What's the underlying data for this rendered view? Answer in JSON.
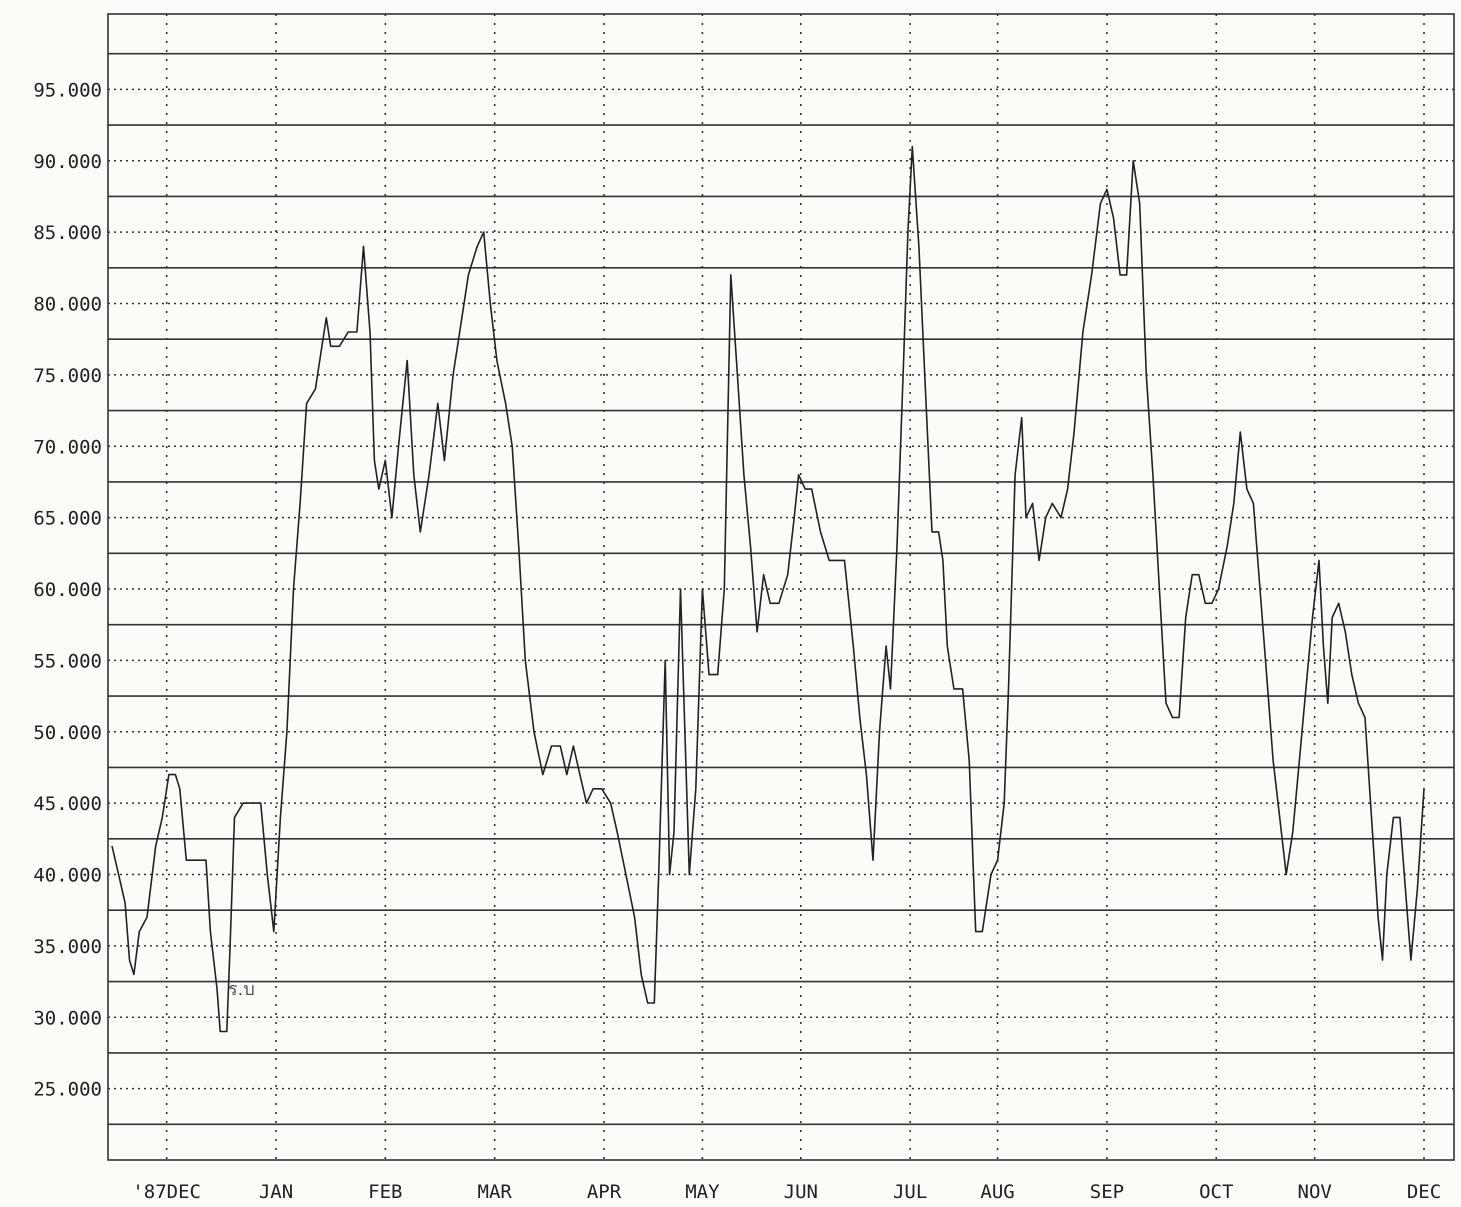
{
  "chart_data": {
    "type": "line",
    "title": "",
    "xlabel": "",
    "ylabel": "",
    "ylim": [
      20,
      100
    ],
    "yticks": [
      25,
      30,
      35,
      40,
      45,
      50,
      55,
      60,
      65,
      70,
      75,
      80,
      85,
      90,
      95
    ],
    "ytick_labels": [
      "25.000",
      "30.000",
      "35.000",
      "40.000",
      "45.000",
      "50.000",
      "55.000",
      "60.000",
      "65.000",
      "70.000",
      "75.000",
      "80.000",
      "85.000",
      "90.000",
      "95.000"
    ],
    "xlim": [
      0,
      12.6
    ],
    "xticks": [
      0.5,
      1.5,
      2.5,
      3.5,
      4.5,
      5.4,
      6.3,
      7.3,
      8.1,
      9.1,
      10.1,
      11.0,
      12.0
    ],
    "xtick_labels": [
      "'87DEC",
      "JAN",
      "FEB",
      "MAR",
      "APR",
      "MAY",
      "JUN",
      "JUL",
      "AUG",
      "SEP",
      "OCT",
      "NOV",
      "DEC"
    ],
    "grid": true,
    "annotations": [
      "ร.บ"
    ],
    "series": [
      {
        "values": [
          [
            0.0,
            42
          ],
          [
            0.06,
            40
          ],
          [
            0.12,
            38
          ],
          [
            0.16,
            34
          ],
          [
            0.2,
            33
          ],
          [
            0.25,
            36
          ],
          [
            0.32,
            37
          ],
          [
            0.4,
            42
          ],
          [
            0.46,
            44
          ],
          [
            0.52,
            47
          ],
          [
            0.58,
            47
          ],
          [
            0.62,
            46
          ],
          [
            0.68,
            41
          ],
          [
            0.8,
            41
          ],
          [
            0.86,
            41
          ],
          [
            0.9,
            36
          ],
          [
            0.96,
            32
          ],
          [
            0.99,
            29
          ],
          [
            1.05,
            29
          ],
          [
            1.08,
            35
          ],
          [
            1.12,
            44
          ],
          [
            1.2,
            45
          ],
          [
            1.28,
            45
          ],
          [
            1.36,
            45
          ],
          [
            1.42,
            40
          ],
          [
            1.48,
            36
          ],
          [
            1.54,
            44
          ],
          [
            1.6,
            50
          ],
          [
            1.66,
            60
          ],
          [
            1.72,
            66
          ],
          [
            1.78,
            73
          ],
          [
            1.86,
            74
          ],
          [
            1.92,
            77
          ],
          [
            1.96,
            79
          ],
          [
            2.0,
            77
          ],
          [
            2.08,
            77
          ],
          [
            2.16,
            78
          ],
          [
            2.24,
            78
          ],
          [
            2.3,
            84
          ],
          [
            2.36,
            78
          ],
          [
            2.4,
            69
          ],
          [
            2.44,
            67
          ],
          [
            2.5,
            69
          ],
          [
            2.56,
            65
          ],
          [
            2.62,
            70
          ],
          [
            2.7,
            76
          ],
          [
            2.76,
            68
          ],
          [
            2.82,
            64
          ],
          [
            2.9,
            68
          ],
          [
            2.98,
            73
          ],
          [
            3.04,
            69
          ],
          [
            3.12,
            75
          ],
          [
            3.18,
            78
          ],
          [
            3.26,
            82
          ],
          [
            3.34,
            84
          ],
          [
            3.4,
            85
          ],
          [
            3.46,
            80
          ],
          [
            3.52,
            76
          ],
          [
            3.6,
            73
          ],
          [
            3.66,
            70
          ],
          [
            3.72,
            63
          ],
          [
            3.78,
            55
          ],
          [
            3.86,
            50
          ],
          [
            3.94,
            47
          ],
          [
            4.02,
            49
          ],
          [
            4.1,
            49
          ],
          [
            4.16,
            47
          ],
          [
            4.22,
            49
          ],
          [
            4.28,
            47
          ],
          [
            4.34,
            45
          ],
          [
            4.4,
            46
          ],
          [
            4.48,
            46
          ],
          [
            4.56,
            45
          ],
          [
            4.62,
            43
          ],
          [
            4.7,
            40
          ],
          [
            4.78,
            37
          ],
          [
            4.84,
            33
          ],
          [
            4.9,
            31
          ],
          [
            4.96,
            31
          ],
          [
            5.0,
            40
          ],
          [
            5.06,
            55
          ],
          [
            5.1,
            40
          ],
          [
            5.14,
            43
          ],
          [
            5.2,
            60
          ],
          [
            5.24,
            50
          ],
          [
            5.28,
            40
          ],
          [
            5.34,
            46
          ],
          [
            5.4,
            60
          ],
          [
            5.46,
            54
          ],
          [
            5.54,
            54
          ],
          [
            5.6,
            60
          ],
          [
            5.66,
            82
          ],
          [
            5.72,
            75
          ],
          [
            5.78,
            68
          ],
          [
            5.84,
            63
          ],
          [
            5.9,
            57
          ],
          [
            5.96,
            61
          ],
          [
            6.02,
            59
          ],
          [
            6.1,
            59
          ],
          [
            6.18,
            61
          ],
          [
            6.24,
            65
          ],
          [
            6.28,
            68
          ],
          [
            6.34,
            67
          ],
          [
            6.4,
            67
          ],
          [
            6.48,
            64
          ],
          [
            6.56,
            62
          ],
          [
            6.7,
            62
          ],
          [
            6.78,
            56
          ],
          [
            6.84,
            51
          ],
          [
            6.9,
            47
          ],
          [
            6.96,
            41
          ],
          [
            7.02,
            50
          ],
          [
            7.08,
            56
          ],
          [
            7.12,
            53
          ],
          [
            7.18,
            63
          ],
          [
            7.24,
            76
          ],
          [
            7.28,
            85
          ],
          [
            7.32,
            91
          ],
          [
            7.38,
            84
          ],
          [
            7.44,
            74
          ],
          [
            7.5,
            64
          ],
          [
            7.56,
            64
          ],
          [
            7.6,
            62
          ],
          [
            7.64,
            56
          ],
          [
            7.7,
            53
          ],
          [
            7.78,
            53
          ],
          [
            7.84,
            48
          ],
          [
            7.9,
            36
          ],
          [
            7.96,
            36
          ],
          [
            8.04,
            40
          ],
          [
            8.1,
            41
          ],
          [
            8.16,
            45
          ],
          [
            8.2,
            53
          ],
          [
            8.26,
            68
          ],
          [
            8.32,
            72
          ],
          [
            8.36,
            65
          ],
          [
            8.42,
            66
          ],
          [
            8.48,
            62
          ],
          [
            8.54,
            65
          ],
          [
            8.6,
            66
          ],
          [
            8.68,
            65
          ],
          [
            8.74,
            67
          ],
          [
            8.8,
            71
          ],
          [
            8.88,
            78
          ],
          [
            8.96,
            82
          ],
          [
            9.04,
            87
          ],
          [
            9.1,
            88
          ],
          [
            9.16,
            86
          ],
          [
            9.22,
            82
          ],
          [
            9.28,
            82
          ],
          [
            9.34,
            90
          ],
          [
            9.4,
            87
          ],
          [
            9.46,
            75
          ],
          [
            9.52,
            68
          ],
          [
            9.58,
            60
          ],
          [
            9.64,
            52
          ],
          [
            9.7,
            51
          ],
          [
            9.76,
            51
          ],
          [
            9.82,
            58
          ],
          [
            9.88,
            61
          ],
          [
            9.94,
            61
          ],
          [
            10.0,
            59
          ],
          [
            10.06,
            59
          ],
          [
            10.12,
            60
          ],
          [
            10.2,
            63
          ],
          [
            10.26,
            66
          ],
          [
            10.32,
            71
          ],
          [
            10.38,
            67
          ],
          [
            10.44,
            66
          ],
          [
            10.5,
            60
          ],
          [
            10.56,
            54
          ],
          [
            10.62,
            48
          ],
          [
            10.68,
            44
          ],
          [
            10.74,
            40
          ],
          [
            10.8,
            43
          ],
          [
            10.86,
            48
          ],
          [
            10.92,
            53
          ],
          [
            10.98,
            58
          ],
          [
            11.04,
            62
          ],
          [
            11.08,
            56
          ],
          [
            11.12,
            52
          ],
          [
            11.16,
            58
          ],
          [
            11.22,
            59
          ],
          [
            11.28,
            57
          ],
          [
            11.34,
            54
          ],
          [
            11.4,
            52
          ],
          [
            11.46,
            51
          ],
          [
            11.52,
            44
          ],
          [
            11.58,
            37
          ],
          [
            11.62,
            34
          ],
          [
            11.66,
            40
          ],
          [
            11.72,
            44
          ],
          [
            11.78,
            44
          ],
          [
            11.82,
            40
          ],
          [
            11.88,
            34
          ],
          [
            11.94,
            39
          ],
          [
            12.0,
            46
          ]
        ]
      }
    ]
  }
}
